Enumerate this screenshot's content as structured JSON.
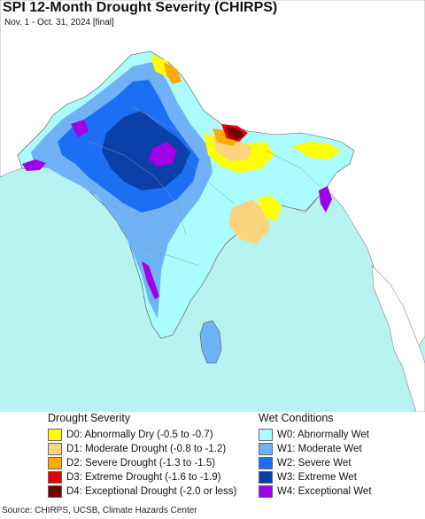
{
  "map": {
    "title": "SPI 12-Month Drought Severity (CHIRPS)",
    "subtitle": "Nov. 1 - Oct. 31, 2024 [final]",
    "ocean_color": "#b7f3f1",
    "land_outside_color": "#ffffff"
  },
  "legend": {
    "drought_heading": "Drought Severity",
    "wet_heading": "Wet Conditions",
    "drought": [
      {
        "label": "D0: Abnormally Dry (-0.5 to -0.7)",
        "color": "#ffff00"
      },
      {
        "label": "D1: Moderate Drought (-0.8 to -1.2)",
        "color": "#fcd37f"
      },
      {
        "label": "D2: Severe Drought (-1.3 to -1.5)",
        "color": "#ffaa00"
      },
      {
        "label": "D3: Extreme Drought (-1.6 to -1.9)",
        "color": "#e60000"
      },
      {
        "label": "D4: Exceptional Drought (-2.0 or less)",
        "color": "#730000"
      }
    ],
    "wet": [
      {
        "label": "W0: Abnormally Wet",
        "color": "#aafcff"
      },
      {
        "label": "W1: Moderate Wet",
        "color": "#6fb2f6"
      },
      {
        "label": "W2: Severe Wet",
        "color": "#1c6ff2"
      },
      {
        "label": "W3: Extreme Wet",
        "color": "#0a3ea8"
      },
      {
        "label": "W4: Exceptional Wet",
        "color": "#a100e6"
      }
    ]
  },
  "footer": {
    "source": "Source: CHIRPS, UCSB, Climate Hazards Center"
  }
}
